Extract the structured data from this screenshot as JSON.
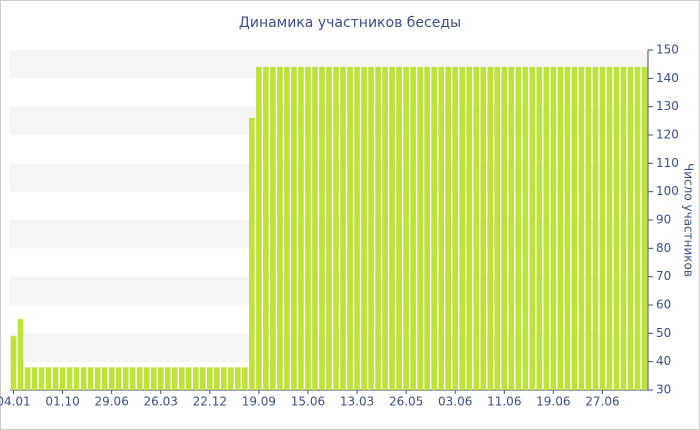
{
  "chart_data": {
    "type": "bar",
    "title": "Динамика участников беседы",
    "y_label": "Число участников",
    "color": "#bde33a",
    "categories": [
      "04.01",
      null,
      null,
      null,
      null,
      null,
      null,
      "01.10",
      null,
      null,
      null,
      null,
      null,
      null,
      "29.06",
      null,
      null,
      null,
      null,
      null,
      null,
      "26.03",
      null,
      null,
      null,
      null,
      null,
      null,
      "22.12",
      null,
      null,
      null,
      null,
      null,
      null,
      "19.09",
      null,
      null,
      null,
      null,
      null,
      null,
      "15.06",
      null,
      null,
      null,
      null,
      null,
      null,
      "13.03",
      null,
      null,
      null,
      null,
      null,
      null,
      "26.05",
      null,
      null,
      null,
      null,
      null,
      null,
      "03.06",
      null,
      null,
      null,
      null,
      null,
      null,
      "11.06",
      null,
      null,
      null,
      null,
      null,
      null,
      "19.06",
      null,
      null,
      null,
      null,
      null,
      null,
      "27.06",
      null,
      null,
      null,
      null,
      null,
      null
    ],
    "values": [
      49,
      55,
      38,
      38,
      38,
      38,
      38,
      38,
      38,
      38,
      38,
      38,
      38,
      38,
      38,
      38,
      38,
      38,
      38,
      38,
      38,
      38,
      38,
      38,
      38,
      38,
      38,
      38,
      38,
      38,
      38,
      38,
      38,
      38,
      126,
      144,
      144,
      144,
      144,
      144,
      144,
      144,
      144,
      144,
      144,
      144,
      144,
      144,
      144,
      144,
      144,
      144,
      144,
      144,
      144,
      144,
      144,
      144,
      144,
      144,
      144,
      144,
      144,
      144,
      144,
      144,
      144,
      144,
      144,
      144,
      144,
      144,
      144,
      144,
      144,
      144,
      144,
      144,
      144,
      144,
      144,
      144,
      144,
      144,
      144,
      144,
      144,
      144,
      144,
      144,
      144
    ],
    "ylim": [
      30,
      150
    ],
    "yticks": [
      30,
      40,
      50,
      60,
      70,
      80,
      90,
      100,
      110,
      120,
      130,
      140,
      150
    ],
    "y_axis_side": "right",
    "grid": "bands"
  }
}
